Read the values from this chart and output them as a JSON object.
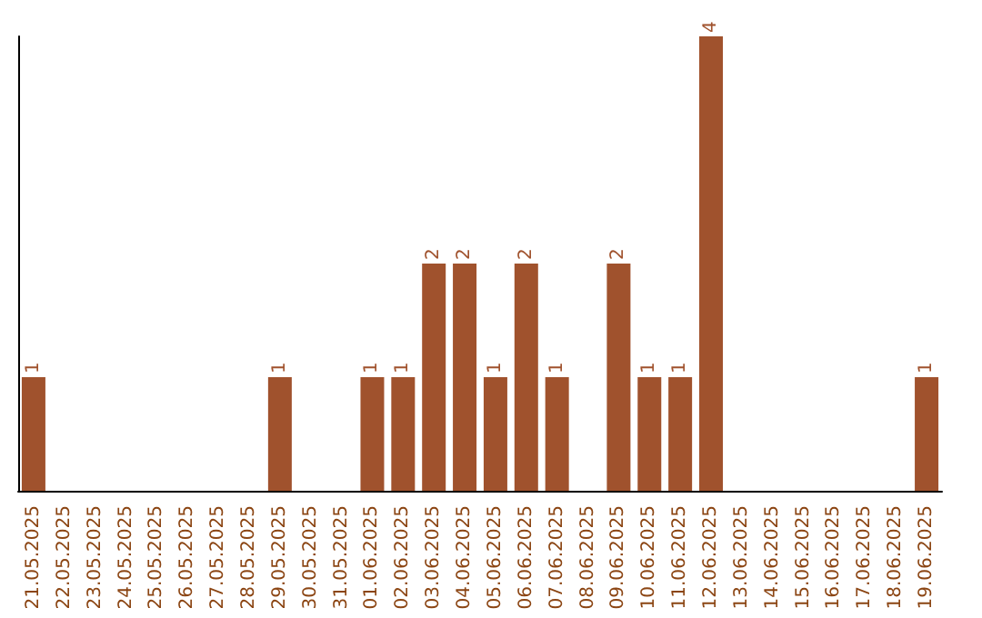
{
  "chart_data": {
    "type": "bar",
    "categories": [
      "21.05.2025",
      "22.05.2025",
      "23.05.2025",
      "24.05.2025",
      "25.05.2025",
      "26.05.2025",
      "27.05.2025",
      "28.05.2025",
      "29.05.2025",
      "30.05.2025",
      "31.05.2025",
      "01.06.2025",
      "02.06.2025",
      "03.06.2025",
      "04.06.2025",
      "05.06.2025",
      "06.06.2025",
      "07.06.2025",
      "08.06.2025",
      "09.06.2025",
      "10.06.2025",
      "11.06.2025",
      "12.06.2025",
      "13.06.2025",
      "14.06.2025",
      "15.06.2025",
      "16.06.2025",
      "17.06.2025",
      "18.06.2025",
      "19.06.2025"
    ],
    "values": [
      1,
      0,
      0,
      0,
      0,
      0,
      0,
      0,
      1,
      0,
      0,
      1,
      1,
      2,
      2,
      1,
      2,
      1,
      0,
      2,
      1,
      1,
      4,
      0,
      0,
      0,
      0,
      0,
      0,
      1
    ],
    "value_labels": [
      "1",
      null,
      null,
      null,
      null,
      null,
      null,
      null,
      "1",
      null,
      null,
      "1",
      "1",
      "2",
      "2",
      "1",
      "2",
      "1",
      null,
      "2",
      "1",
      "1",
      "4",
      null,
      null,
      null,
      null,
      null,
      null,
      "1"
    ],
    "color": "#a0522d",
    "tick_labels": "x",
    "grid": false
  }
}
